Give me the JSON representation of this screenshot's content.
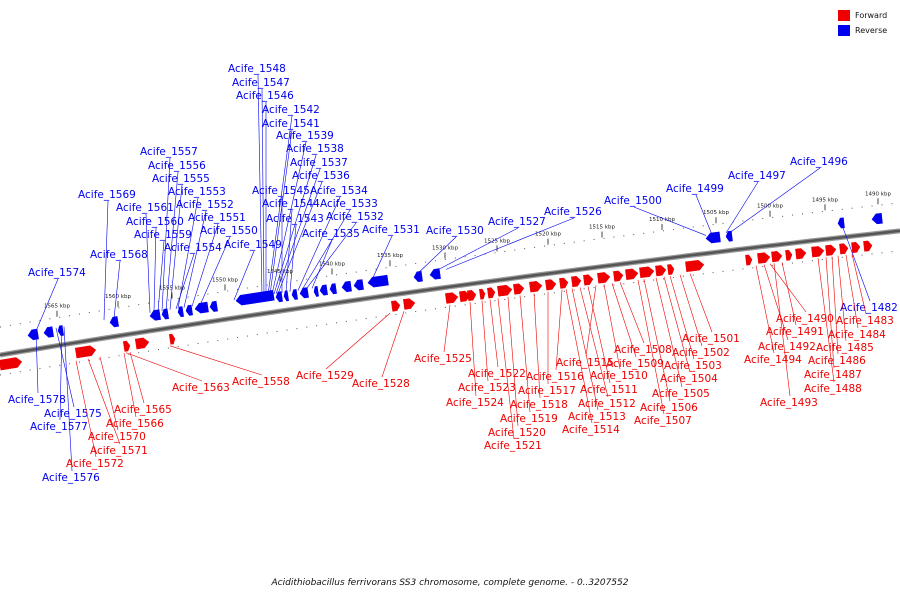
{
  "legend": {
    "forward_label": "Forward",
    "reverse_label": "Reverse",
    "forward_color": "#ee0000",
    "reverse_color": "#0000ee"
  },
  "caption": "Acidithiobacillus ferrivorans SS3 chromosome, complete genome. - 0..3207552",
  "ticks": [
    "1490 kbp",
    "1495 kbp",
    "1500 kbp",
    "1505 kbp",
    "1510 kbp",
    "1515 kbp",
    "1520 kbp",
    "1525 kbp",
    "1530 kbp",
    "1535 kbp",
    "1540 kbp",
    "1545 kbp",
    "1550 kbp",
    "1555 kbp",
    "1560 kbp",
    "1565 kbp"
  ],
  "reverse_genes": [
    "Acife_1548",
    "Acife_1547",
    "Acife_1546",
    "Acife_1542",
    "Acife_1541",
    "Acife_1539",
    "Acife_1538",
    "Acife_1537",
    "Acife_1536",
    "Acife_1545",
    "Acife_1534",
    "Acife_1544",
    "Acife_1533",
    "Acife_1543",
    "Acife_1532",
    "Acife_1535",
    "Acife_1531",
    "Acife_1557",
    "Acife_1556",
    "Acife_1555",
    "Acife_1553",
    "Acife_1552",
    "Acife_1551",
    "Acife_1550",
    "Acife_1549",
    "Acife_1554",
    "Acife_1561",
    "Acife_1560",
    "Acife_1559",
    "Acife_1569",
    "Acife_1568",
    "Acife_1574",
    "Acife_1530",
    "Acife_1527",
    "Acife_1526",
    "Acife_1500",
    "Acife_1499",
    "Acife_1497",
    "Acife_1496",
    "Acife_1482",
    "Acife_1578",
    "Acife_1575",
    "Acife_1577",
    "Acife_1576"
  ],
  "forward_genes": [
    "Acife_1490",
    "Acife_1491",
    "Acife_1483",
    "Acife_1484",
    "Acife_1492",
    "Acife_1485",
    "Acife_1494",
    "Acife_1486",
    "Acife_1487",
    "Acife_1488",
    "Acife_1493",
    "Acife_1501",
    "Acife_1502",
    "Acife_1508",
    "Acife_1503",
    "Acife_1509",
    "Acife_1504",
    "Acife_1505",
    "Acife_1506",
    "Acife_1507",
    "Acife_1515",
    "Acife_1510",
    "Acife_1511",
    "Acife_1512",
    "Acife_1513",
    "Acife_1514",
    "Acife_1516",
    "Acife_1517",
    "Acife_1518",
    "Acife_1519",
    "Acife_1520",
    "Acife_1521",
    "Acife_1522",
    "Acife_1523",
    "Acife_1524",
    "Acife_1525",
    "Acife_1529",
    "Acife_1528",
    "Acife_1558",
    "Acife_1563",
    "Acife_1565",
    "Acife_1566",
    "Acife_1570",
    "Acife_1571",
    "Acife_1572"
  ]
}
